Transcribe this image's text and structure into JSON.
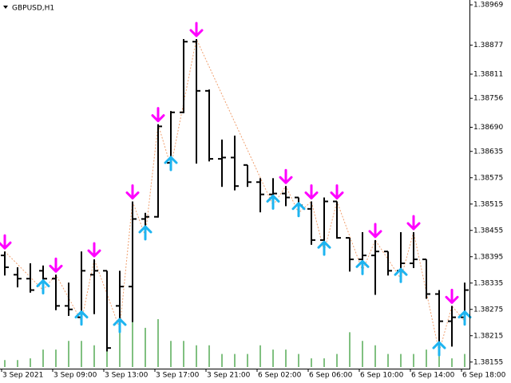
{
  "chart_data": {
    "type": "ohlc",
    "title": "GBPUSD,H1",
    "color": "#000000",
    "volume_color": "#008000",
    "buy_color": "#1eb4f0",
    "sell_color": "#ff00ff",
    "zigzag_color": "#f0a070",
    "categories": [
      "3 Sep 2021",
      null,
      null,
      null,
      "3 Sep 09:00",
      null,
      null,
      null,
      "3 Sep 13:00",
      null,
      null,
      null,
      "3 Sep 17:00",
      null,
      null,
      null,
      "3 Sep 21:00",
      null,
      null,
      null,
      "6 Sep 02:00",
      null,
      null,
      null,
      "6 Sep 06:00",
      null,
      null,
      null,
      "6 Sep 10:00",
      null,
      null,
      null,
      "6 Sep 14:00",
      null,
      null,
      null,
      "6 Sep 18:00"
    ],
    "open": [
      1.38398,
      1.38354,
      1.38345,
      1.38363,
      1.38345,
      1.38283,
      1.38257,
      1.38354,
      1.38363,
      1.38283,
      1.38327,
      1.38481,
      1.38486,
      1.38609,
      1.38724,
      1.38885,
      1.38773,
      1.38618,
      1.38621,
      1.38604,
      1.38565,
      1.38537,
      1.38539,
      1.3853,
      1.38504,
      1.38433,
      1.38521,
      1.38438,
      1.38389,
      1.38398,
      1.38407,
      1.38363,
      1.3838,
      1.38389,
      1.3831,
      1.38248,
      1.38257
    ],
    "high": [
      1.38407,
      1.38371,
      1.3838,
      1.38375,
      1.38354,
      1.38336,
      1.38407,
      1.38389,
      1.38363,
      1.38363,
      1.38521,
      1.38495,
      1.38697,
      1.38727,
      1.38891,
      1.38891,
      1.38776,
      1.38662,
      1.38671,
      1.38604,
      1.38574,
      1.38574,
      1.38556,
      1.3853,
      1.38521,
      1.3853,
      1.38521,
      1.38438,
      1.38451,
      1.38433,
      1.38407,
      1.38451,
      1.38451,
      1.38389,
      1.38319,
      1.38283,
      1.38336
    ],
    "low": [
      1.38354,
      1.38327,
      1.38315,
      1.38319,
      1.38275,
      1.38262,
      1.38248,
      1.38266,
      1.38181,
      1.38231,
      1.38248,
      1.38442,
      1.38486,
      1.386,
      1.38724,
      1.38609,
      1.38614,
      1.38556,
      1.38548,
      1.38556,
      1.38498,
      1.38512,
      1.38512,
      1.38495,
      1.38424,
      1.38407,
      1.38438,
      1.38363,
      1.38363,
      1.3831,
      1.38354,
      1.38345,
      1.38371,
      1.38301,
      1.38178,
      1.38192,
      1.38248
    ],
    "close": [
      1.38371,
      1.38345,
      1.38319,
      1.38345,
      1.38283,
      1.38275,
      1.38363,
      1.38363,
      1.38187,
      1.38327,
      1.38481,
      1.38486,
      1.38692,
      1.38724,
      1.38885,
      1.38773,
      1.38618,
      1.38621,
      1.38556,
      1.38565,
      1.38537,
      1.38539,
      1.3853,
      1.38512,
      1.38433,
      1.38521,
      1.38438,
      1.38389,
      1.38398,
      1.38407,
      1.38363,
      1.3838,
      1.38389,
      1.3831,
      1.38248,
      1.38257,
      1.38319
    ],
    "volume": [
      8,
      8,
      10,
      20,
      20,
      30,
      30,
      25,
      30,
      40,
      55,
      45,
      55,
      30,
      30,
      25,
      25,
      15,
      15,
      15,
      25,
      20,
      20,
      15,
      10,
      10,
      15,
      40,
      30,
      25,
      15,
      15,
      15,
      20,
      25,
      10,
      15
    ],
    "signals": [
      "sell",
      null,
      null,
      "buy",
      "sell",
      null,
      "buy",
      "sell",
      null,
      "buy",
      "sell",
      "buy",
      "sell",
      "buy",
      null,
      "sell",
      null,
      null,
      null,
      null,
      null,
      "buy",
      "sell",
      "buy",
      "sell",
      "buy",
      "sell",
      null,
      "buy",
      "sell",
      null,
      "buy",
      "sell",
      null,
      "buy",
      "sell",
      "buy"
    ],
    "ylim": [
      1.3814,
      1.3898
    ],
    "yticks": [
      1.38969,
      1.38877,
      1.38811,
      1.38756,
      {
        "value": 1.3869,
        "label": "1.38690"
      },
      1.38635,
      1.38575,
      1.38515,
      1.38455,
      1.38395,
      1.38335,
      1.38275,
      1.38215,
      1.38155
    ]
  }
}
